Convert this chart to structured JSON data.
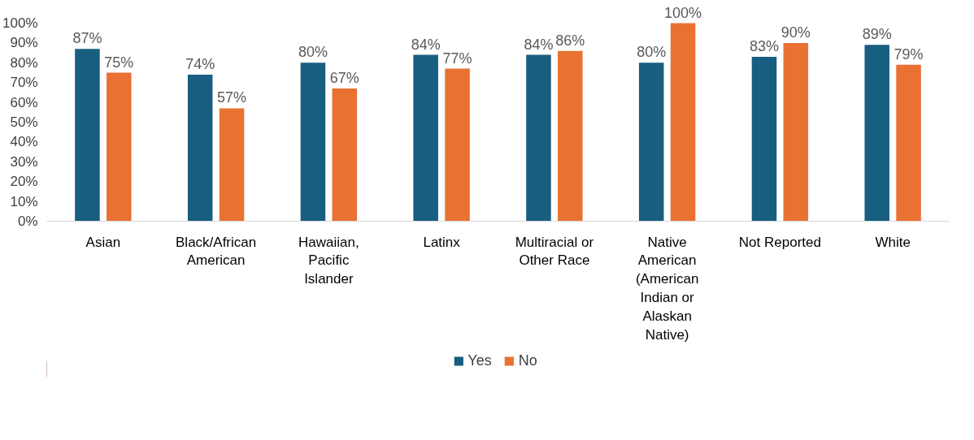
{
  "chart_data": {
    "type": "bar",
    "categories": [
      "Asian",
      "Black/African American",
      "Hawaiian, Pacific Islander",
      "Latinx",
      "Multiracial or Other Race",
      "Native American (American Indian or Alaskan Native)",
      "Not Reported",
      "White"
    ],
    "series": [
      {
        "name": "Yes",
        "color": "#175e80",
        "values": [
          87,
          74,
          80,
          84,
          84,
          80,
          83,
          89
        ],
        "value_labels": [
          "87%",
          "74%",
          "80%",
          "84%",
          "84%",
          "80%",
          "83%",
          "89%"
        ]
      },
      {
        "name": "No",
        "color": "#e97132",
        "values": [
          75,
          57,
          67,
          77,
          86,
          100,
          90,
          79
        ],
        "value_labels": [
          "75%",
          "57%",
          "67%",
          "77%",
          "86%",
          "100%",
          "90%",
          "79%"
        ]
      }
    ],
    "ylim": [
      0,
      100
    ],
    "yticks": [
      {
        "value": 0,
        "label": "0%"
      },
      {
        "value": 10,
        "label": "10%"
      },
      {
        "value": 20,
        "label": "20%"
      },
      {
        "value": 30,
        "label": "30%"
      },
      {
        "value": 40,
        "label": "40%"
      },
      {
        "value": 50,
        "label": "50%"
      },
      {
        "value": 60,
        "label": "60%"
      },
      {
        "value": 70,
        "label": "70%"
      },
      {
        "value": 80,
        "label": "80%"
      },
      {
        "value": 90,
        "label": "90%"
      },
      {
        "value": 100,
        "label": "100%"
      }
    ],
    "grid": false,
    "legend": "bottom"
  }
}
